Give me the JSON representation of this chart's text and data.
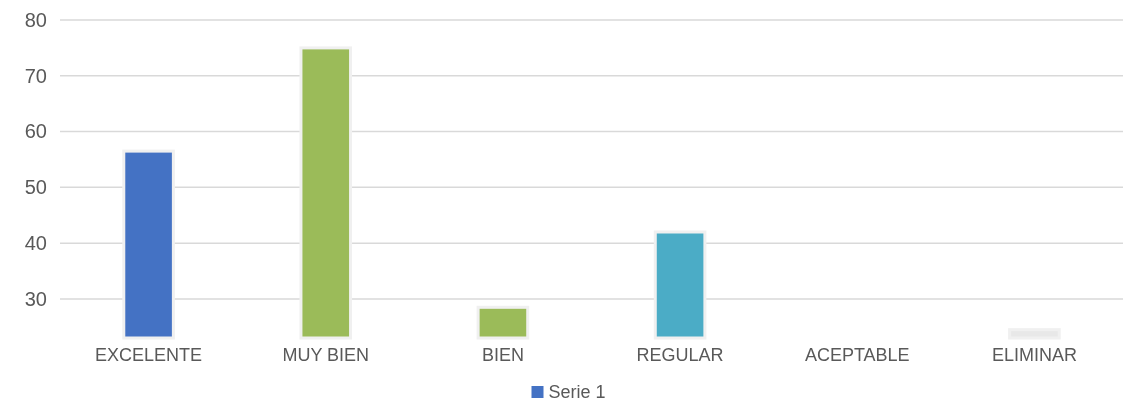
{
  "chart_data": {
    "type": "bar",
    "categories": [
      "EXCELENTE",
      "MUY BIEN",
      "BIEN",
      "REGULAR",
      "ACEPTABLE",
      "ELIMINAR"
    ],
    "series": [
      {
        "name": "Serie 1",
        "color": "#4472c4",
        "colors": [
          "#4472c4",
          "#9bbb59",
          "#9bbb59",
          "#4bacc6",
          null,
          "#e8e8e8"
        ],
        "values": [
          56.5,
          75,
          28.5,
          42,
          null,
          24.5
        ]
      }
    ],
    "ylim": [
      23,
      80
    ],
    "yticks": [
      30,
      40,
      50,
      60,
      70,
      80
    ],
    "grid": "y",
    "legend": "bottom"
  }
}
